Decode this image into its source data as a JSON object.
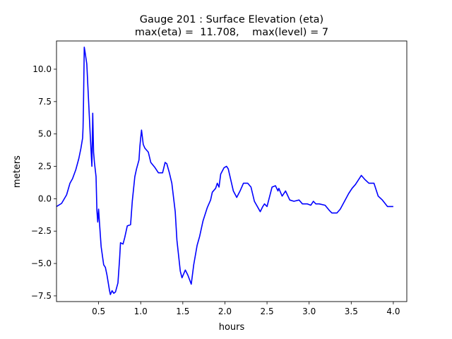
{
  "chart_data": {
    "type": "line",
    "title": "Gauge 201 : Surface Elevation (eta)",
    "subtitle": "max(eta) =  11.708,    max(level) = 7",
    "xlabel": "hours",
    "ylabel": "meters",
    "xlim": [
      0.0,
      4.16
    ],
    "ylim": [
      -7.94,
      12.18
    ],
    "xticks": [
      0.5,
      1.0,
      1.5,
      2.0,
      2.5,
      3.0,
      3.5,
      4.0
    ],
    "xtick_labels": [
      "0.5",
      "1.0",
      "1.5",
      "2.0",
      "2.5",
      "3.0",
      "3.5",
      "4.0"
    ],
    "yticks": [
      -7.5,
      -5.0,
      -2.5,
      0.0,
      2.5,
      5.0,
      7.5,
      10.0
    ],
    "ytick_labels": [
      "−7.5",
      "−5.0",
      "−2.5",
      "0.0",
      "2.5",
      "5.0",
      "7.5",
      "10.0"
    ],
    "grid": false,
    "series": [
      {
        "name": "eta",
        "color": "#0000ff",
        "x": [
          0.0,
          0.06,
          0.12,
          0.16,
          0.19,
          0.23,
          0.265,
          0.29,
          0.31,
          0.315,
          0.32,
          0.33,
          0.34,
          0.36,
          0.38,
          0.4,
          0.42,
          0.43,
          0.44,
          0.45,
          0.47,
          0.48,
          0.49,
          0.5,
          0.51,
          0.53,
          0.56,
          0.58,
          0.6,
          0.63,
          0.64,
          0.66,
          0.68,
          0.7,
          0.73,
          0.75,
          0.76,
          0.79,
          0.81,
          0.84,
          0.88,
          0.9,
          0.93,
          0.95,
          0.98,
          0.99,
          1.0,
          1.01,
          1.03,
          1.05,
          1.09,
          1.12,
          1.17,
          1.21,
          1.26,
          1.29,
          1.31,
          1.34,
          1.37,
          1.41,
          1.43,
          1.47,
          1.49,
          1.53,
          1.56,
          1.6,
          1.63,
          1.67,
          1.7,
          1.74,
          1.79,
          1.83,
          1.85,
          1.89,
          1.91,
          1.93,
          1.95,
          1.99,
          2.02,
          2.04,
          2.1,
          2.14,
          2.18,
          2.22,
          2.27,
          2.31,
          2.35,
          2.42,
          2.45,
          2.47,
          2.5,
          2.56,
          2.6,
          2.63,
          2.64,
          2.68,
          2.72,
          2.77,
          2.82,
          2.88,
          2.92,
          2.98,
          3.02,
          3.05,
          3.08,
          3.12,
          3.19,
          3.24,
          3.27,
          3.33,
          3.37,
          3.42,
          3.47,
          3.51,
          3.55,
          3.62,
          3.66,
          3.71,
          3.77,
          3.82,
          3.87,
          3.93,
          3.96,
          4.0
        ],
        "y": [
          -0.6,
          -0.36,
          0.3,
          1.2,
          1.55,
          2.25,
          3.1,
          3.9,
          4.7,
          5.5,
          7.2,
          11.7,
          11.3,
          10.4,
          7.7,
          5.0,
          2.5,
          6.6,
          3.6,
          2.8,
          1.7,
          -0.9,
          -1.8,
          -0.8,
          -1.8,
          -3.7,
          -5.1,
          -5.3,
          -5.9,
          -7.1,
          -7.4,
          -7.1,
          -7.3,
          -7.2,
          -6.5,
          -4.6,
          -3.4,
          -3.5,
          -3.0,
          -2.1,
          -2.0,
          -0.2,
          1.7,
          2.3,
          3.0,
          4.0,
          4.7,
          5.3,
          4.2,
          3.9,
          3.6,
          2.8,
          2.4,
          2.0,
          2.0,
          2.8,
          2.7,
          2.0,
          1.2,
          -1.0,
          -3.2,
          -5.6,
          -6.1,
          -5.5,
          -5.9,
          -6.6,
          -5.1,
          -3.6,
          -2.9,
          -1.7,
          -0.7,
          -0.1,
          0.5,
          0.8,
          1.2,
          0.9,
          1.9,
          2.4,
          2.5,
          2.3,
          0.6,
          0.1,
          0.6,
          1.2,
          1.2,
          0.9,
          -0.2,
          -1.0,
          -0.6,
          -0.4,
          -0.6,
          0.9,
          1.0,
          0.6,
          0.8,
          0.2,
          0.6,
          -0.1,
          -0.2,
          -0.1,
          -0.4,
          -0.4,
          -0.5,
          -0.2,
          -0.4,
          -0.4,
          -0.5,
          -0.9,
          -1.1,
          -1.1,
          -0.8,
          -0.2,
          0.4,
          0.8,
          1.1,
          1.8,
          1.5,
          1.2,
          1.2,
          0.2,
          -0.1,
          -0.6,
          -0.6,
          -0.6
        ]
      }
    ]
  }
}
